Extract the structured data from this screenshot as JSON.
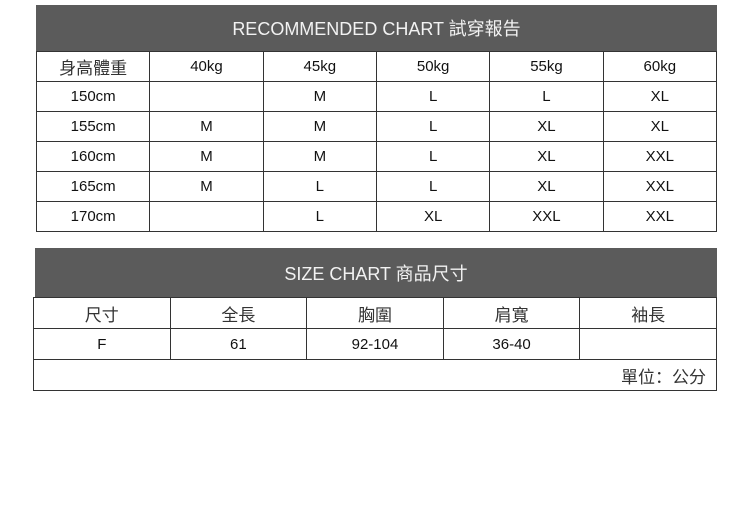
{
  "recommended": {
    "title": "RECOMMENDED CHART  試穿報告",
    "header": [
      "身高體重",
      "40kg",
      "45kg",
      "50kg",
      "55kg",
      "60kg"
    ],
    "rows": [
      [
        "150cm",
        "",
        "M",
        "L",
        "L",
        "XL"
      ],
      [
        "155cm",
        "M",
        "M",
        "L",
        "XL",
        "XL"
      ],
      [
        "160cm",
        "M",
        "M",
        "L",
        "XL",
        "XXL"
      ],
      [
        "165cm",
        "M",
        "L",
        "L",
        "XL",
        "XXL"
      ],
      [
        "170cm",
        "",
        "L",
        "XL",
        "XXL",
        "XXL"
      ]
    ]
  },
  "size": {
    "title": "SIZE CHART  商品尺寸",
    "header": [
      "尺寸",
      "全長",
      "胸圍",
      "肩寬",
      "袖長"
    ],
    "rows": [
      [
        "F",
        "61",
        "92-104",
        "36-40",
        ""
      ]
    ],
    "unit": "單位：公分"
  }
}
